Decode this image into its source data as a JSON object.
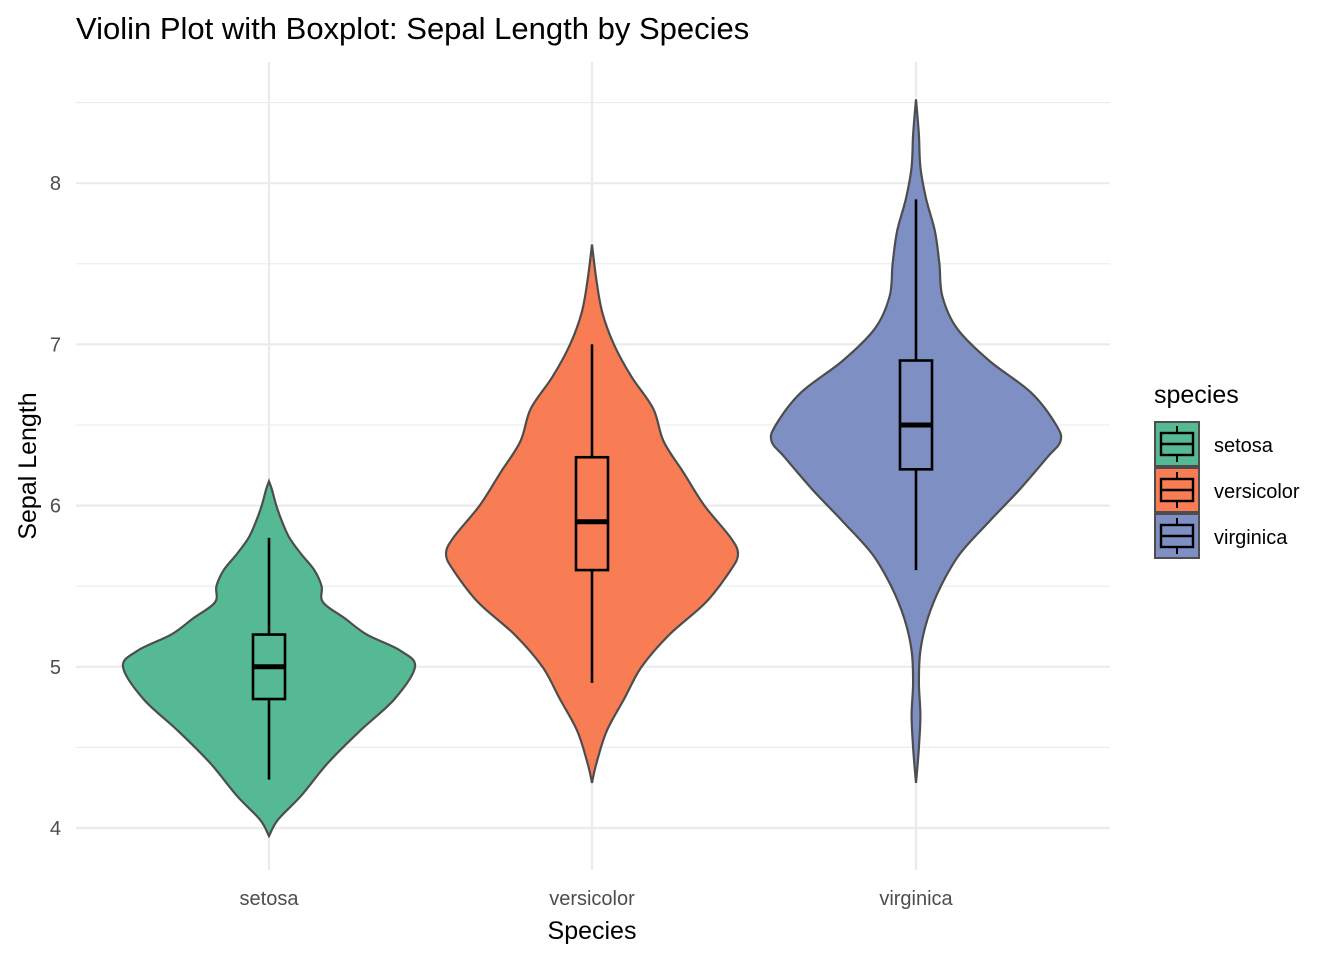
{
  "chart_data": {
    "type": "violin",
    "title": "Violin Plot with Boxplot: Sepal Length by Species",
    "xlabel": "Species",
    "ylabel": "Sepal Length",
    "ylim": [
      3.85,
      8.75
    ],
    "yticks": [
      4,
      5,
      6,
      7,
      8
    ],
    "y_minor_ticks": [
      4.5,
      5.5,
      6.5,
      7.5,
      8.5
    ],
    "grid": true,
    "legend": {
      "title": "species",
      "position": "right"
    },
    "categories": [
      "setosa",
      "versicolor",
      "virginica"
    ],
    "series": [
      {
        "name": "setosa",
        "color": "#55b993",
        "box": {
          "min": 4.3,
          "q1": 4.8,
          "median": 5.0,
          "q3": 5.2,
          "max": 5.8
        },
        "violin_range": [
          3.95,
          6.15
        ],
        "density_profile": [
          [
            3.95,
            0.0
          ],
          [
            4.05,
            0.06
          ],
          [
            4.2,
            0.22
          ],
          [
            4.4,
            0.4
          ],
          [
            4.6,
            0.62
          ],
          [
            4.8,
            0.86
          ],
          [
            5.0,
            1.0
          ],
          [
            5.1,
            0.9
          ],
          [
            5.2,
            0.67
          ],
          [
            5.3,
            0.52
          ],
          [
            5.4,
            0.37
          ],
          [
            5.5,
            0.36
          ],
          [
            5.6,
            0.31
          ],
          [
            5.7,
            0.22
          ],
          [
            5.8,
            0.14
          ],
          [
            5.9,
            0.09
          ],
          [
            6.0,
            0.05
          ],
          [
            6.1,
            0.02
          ],
          [
            6.15,
            0.0
          ]
        ]
      },
      {
        "name": "versicolor",
        "color": "#f87c54",
        "box": {
          "min": 4.9,
          "q1": 5.6,
          "median": 5.9,
          "q3": 6.3,
          "max": 7.0
        },
        "violin_range": [
          4.28,
          7.62
        ],
        "density_profile": [
          [
            4.28,
            0.0
          ],
          [
            4.4,
            0.03
          ],
          [
            4.6,
            0.1
          ],
          [
            4.8,
            0.22
          ],
          [
            5.0,
            0.34
          ],
          [
            5.2,
            0.53
          ],
          [
            5.4,
            0.78
          ],
          [
            5.6,
            0.95
          ],
          [
            5.7,
            1.0
          ],
          [
            5.8,
            0.95
          ],
          [
            6.0,
            0.77
          ],
          [
            6.2,
            0.63
          ],
          [
            6.4,
            0.49
          ],
          [
            6.6,
            0.42
          ],
          [
            6.8,
            0.27
          ],
          [
            7.0,
            0.15
          ],
          [
            7.2,
            0.07
          ],
          [
            7.4,
            0.03
          ],
          [
            7.62,
            0.0
          ]
        ]
      },
      {
        "name": "virginica",
        "color": "#7d8fc3",
        "box": {
          "min": 5.6,
          "q1": 6.225,
          "median": 6.5,
          "q3": 6.9,
          "max": 7.9
        },
        "violin_range": [
          4.28,
          8.52
        ],
        "density_profile": [
          [
            4.28,
            0.0
          ],
          [
            4.5,
            0.02
          ],
          [
            4.7,
            0.03
          ],
          [
            4.9,
            0.02
          ],
          [
            5.1,
            0.03
          ],
          [
            5.3,
            0.08
          ],
          [
            5.5,
            0.17
          ],
          [
            5.7,
            0.3
          ],
          [
            5.9,
            0.5
          ],
          [
            6.1,
            0.71
          ],
          [
            6.3,
            0.9
          ],
          [
            6.4,
            0.99
          ],
          [
            6.5,
            0.96
          ],
          [
            6.7,
            0.79
          ],
          [
            6.9,
            0.5
          ],
          [
            7.1,
            0.28
          ],
          [
            7.3,
            0.18
          ],
          [
            7.5,
            0.16
          ],
          [
            7.7,
            0.13
          ],
          [
            7.9,
            0.07
          ],
          [
            8.1,
            0.03
          ],
          [
            8.3,
            0.02
          ],
          [
            8.52,
            0.0
          ]
        ]
      }
    ]
  }
}
